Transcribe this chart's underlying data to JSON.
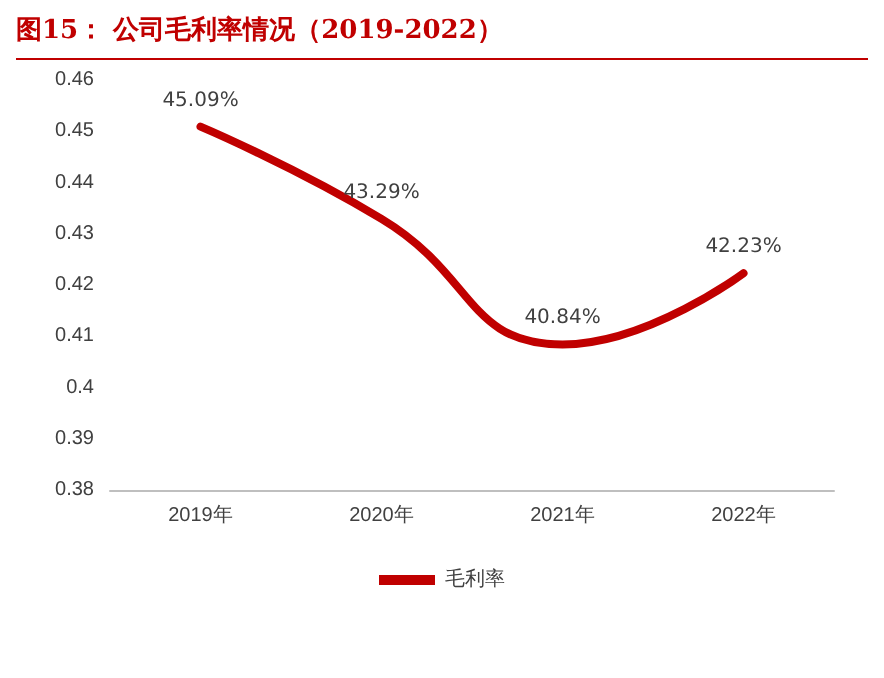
{
  "chart_data": {
    "type": "line",
    "title": "图15：  公司毛利率情况（2019-2022）",
    "categories": [
      "2019年",
      "2020年",
      "2021年",
      "2022年"
    ],
    "series": [
      {
        "name": "毛利率",
        "color": "#c00000",
        "values": [
          0.4509,
          0.4329,
          0.4084,
          0.4223
        ],
        "value_labels": [
          "45.09%",
          "43.29%",
          "40.84%",
          "42.23%"
        ]
      }
    ],
    "ylim": [
      0.38,
      0.46
    ],
    "yticks": [
      0.38,
      0.39,
      0.4,
      0.41,
      0.42,
      0.43,
      0.44,
      0.45,
      0.46
    ],
    "grid": false,
    "legend": "bottom",
    "marker": "none"
  }
}
